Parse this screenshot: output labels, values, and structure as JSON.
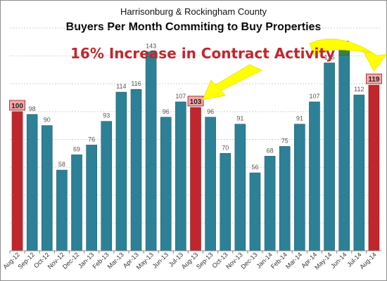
{
  "colors": {
    "bar_default": "#2c8196",
    "bar_default_stroke": "#1f5f6f",
    "bar_highlight": "#c0272d",
    "bar_highlight_stroke": "#8e1b20",
    "bar_peak": "#3f7f3a",
    "highlight_label_bg": "#f4a6a6",
    "headline": "#c0272d",
    "arrow": "#ffff00",
    "grid": "#d0d0d0"
  },
  "annotation": {
    "headline": "16% Increase in Contract Activity"
  },
  "chart_data": {
    "type": "bar",
    "title": "Buyers Per Month Commiting to Buy Properties",
    "subtitle": "Harrisonburg & Rockingham County",
    "xlabel": "",
    "ylabel": "",
    "ylim": [
      0,
      160
    ],
    "grid": true,
    "categories": [
      "Aug-12",
      "Sep-12",
      "Oct-12",
      "Nov-12",
      "Dec-12",
      "Jan-13",
      "Feb-13",
      "Mar-13",
      "Apr-13",
      "May-13",
      "Jun-13",
      "Jul-13",
      "Aug-13",
      "Sep-13",
      "Oct-13",
      "Nov-13",
      "Dec-13",
      "Jan-14",
      "Feb-14",
      "Mar-14",
      "Apr-14",
      "May-14",
      "Jun-14",
      "Jul-14",
      "Aug-14"
    ],
    "values": [
      100,
      98,
      90,
      58,
      69,
      76,
      93,
      114,
      116,
      143,
      96,
      107,
      103,
      96,
      70,
      91,
      56,
      68,
      75,
      91,
      107,
      135,
      145,
      112,
      119
    ],
    "highlighted_categories": [
      "Aug-12",
      "Aug-13",
      "Aug-14"
    ],
    "peak_category": "Jun-14"
  }
}
